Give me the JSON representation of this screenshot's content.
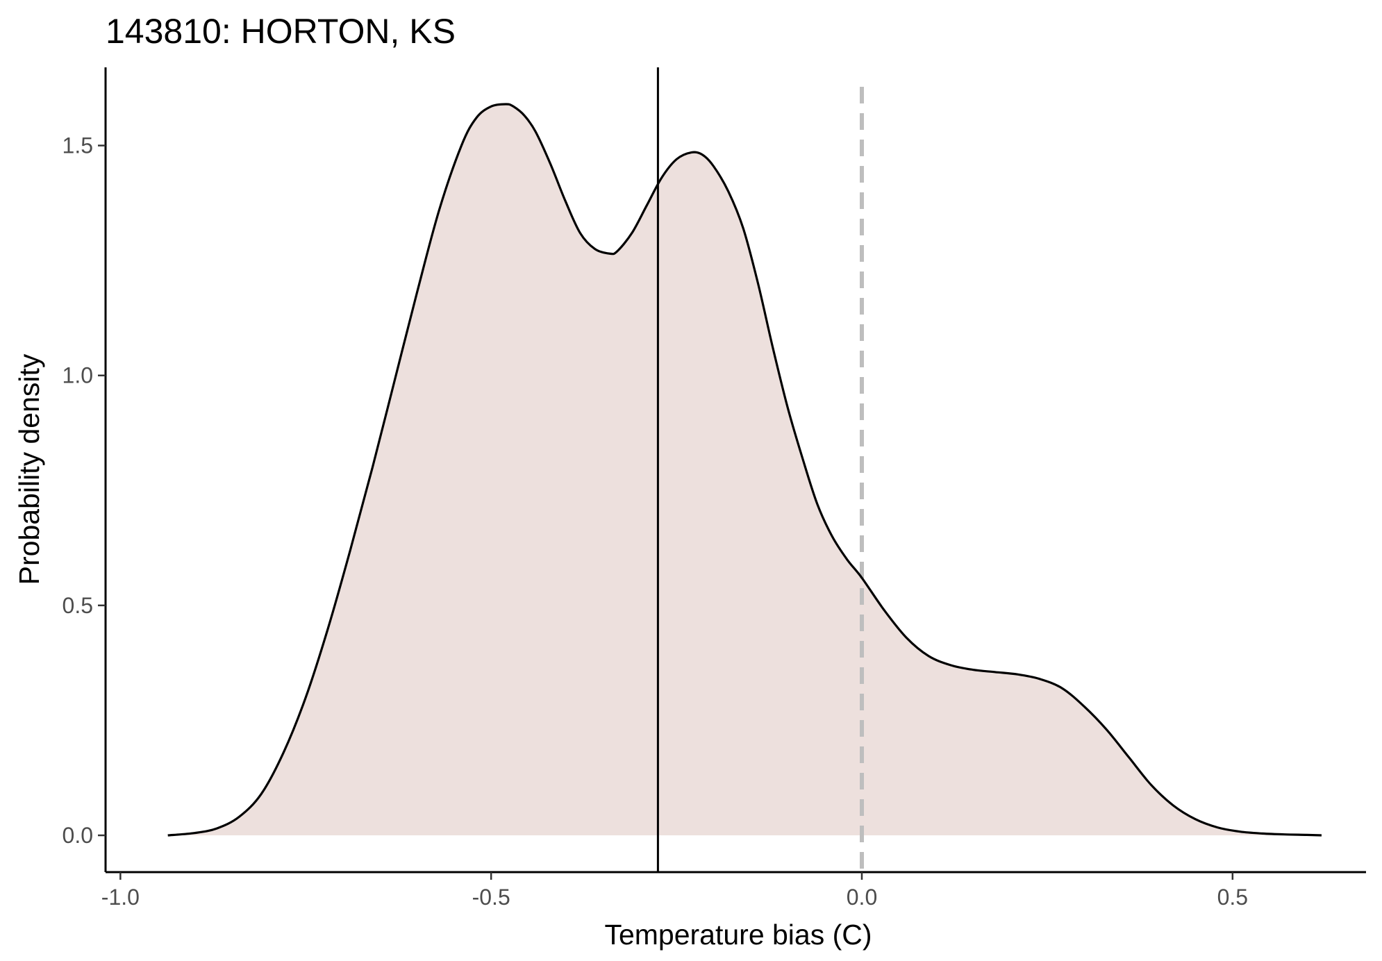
{
  "chart_data": {
    "type": "area",
    "title": "143810: HORTON, KS",
    "xlabel": "Temperature bias (C)",
    "ylabel": "Probability density",
    "xlim": [
      -1.02,
      0.68
    ],
    "ylim": [
      -0.08,
      1.67
    ],
    "x_ticks": [
      -1.0,
      -0.5,
      0.0,
      0.5
    ],
    "x_tick_labels": [
      "-1.0",
      "-0.5",
      "0.0",
      "0.5"
    ],
    "y_ticks": [
      0.0,
      0.5,
      1.0,
      1.5
    ],
    "y_tick_labels": [
      "0.0",
      "0.5",
      "1.0",
      "1.5"
    ],
    "grid": false,
    "legend": "none",
    "fill_color": "#ede0dd",
    "line_color": "#000000",
    "mean_line_x": -0.275,
    "reference_line_x": 0.0,
    "reference_line_color": "#bebebe",
    "series": [
      {
        "x": [
          -0.936,
          -0.9,
          -0.87,
          -0.84,
          -0.81,
          -0.78,
          -0.75,
          -0.72,
          -0.69,
          -0.66,
          -0.63,
          -0.6,
          -0.57,
          -0.54,
          -0.52,
          -0.5,
          -0.48,
          -0.47,
          -0.455,
          -0.44,
          -0.42,
          -0.4,
          -0.38,
          -0.36,
          -0.34,
          -0.33,
          -0.31,
          -0.29,
          -0.27,
          -0.25,
          -0.23,
          -0.215,
          -0.2,
          -0.18,
          -0.16,
          -0.14,
          -0.12,
          -0.1,
          -0.08,
          -0.06,
          -0.04,
          -0.02,
          0.0,
          0.03,
          0.06,
          0.09,
          0.12,
          0.15,
          0.18,
          0.21,
          0.24,
          0.27,
          0.3,
          0.33,
          0.36,
          0.39,
          0.42,
          0.45,
          0.48,
          0.51,
          0.54,
          0.57,
          0.6,
          0.62
        ],
        "y": [
          0.0,
          0.005,
          0.015,
          0.04,
          0.09,
          0.18,
          0.3,
          0.45,
          0.62,
          0.8,
          0.99,
          1.18,
          1.36,
          1.5,
          1.56,
          1.585,
          1.59,
          1.585,
          1.565,
          1.53,
          1.46,
          1.38,
          1.31,
          1.275,
          1.265,
          1.27,
          1.31,
          1.37,
          1.43,
          1.47,
          1.485,
          1.48,
          1.455,
          1.4,
          1.32,
          1.2,
          1.06,
          0.93,
          0.82,
          0.72,
          0.65,
          0.6,
          0.56,
          0.49,
          0.43,
          0.39,
          0.37,
          0.36,
          0.355,
          0.35,
          0.34,
          0.32,
          0.28,
          0.23,
          0.17,
          0.11,
          0.065,
          0.035,
          0.017,
          0.008,
          0.004,
          0.002,
          0.001,
          0.0
        ]
      }
    ]
  }
}
